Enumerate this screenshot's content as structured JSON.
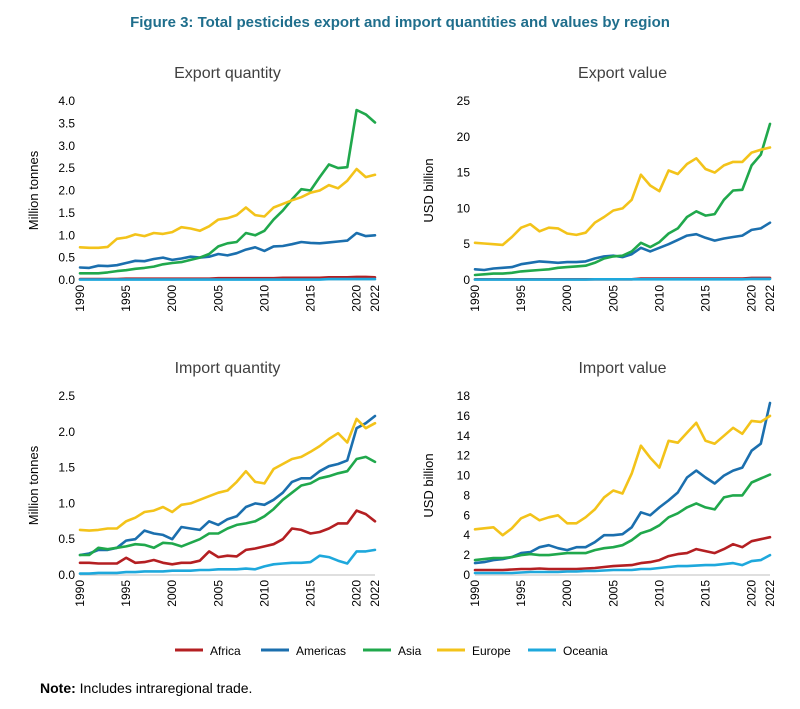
{
  "figure_title": "Figure 3: Total pesticides export and import quantities and values by region",
  "note": {
    "label": "Note:",
    "text": " Includes intraregional trade."
  },
  "colors": {
    "Africa": "#b41f22",
    "Americas": "#1b6fae",
    "Asia": "#20a84c",
    "Europe": "#f3c31a",
    "Oceania": "#1ea8dc"
  },
  "chart_data": [
    {
      "type": "line",
      "title": "Export quantity",
      "xlabel": "",
      "ylabel": "Million tonnes",
      "ylim": [
        0,
        4
      ],
      "yticks": [
        "0.0",
        "0.5",
        "1.0",
        "1.5",
        "2.0",
        "2.5",
        "3.0",
        "3.5",
        "4.0"
      ],
      "x": [
        1990,
        1991,
        1992,
        1993,
        1994,
        1995,
        1996,
        1997,
        1998,
        1999,
        2000,
        2001,
        2002,
        2003,
        2004,
        2005,
        2006,
        2007,
        2008,
        2009,
        2010,
        2011,
        2012,
        2013,
        2014,
        2015,
        2016,
        2017,
        2018,
        2019,
        2020,
        2021,
        2022
      ],
      "xticks": [
        "1990",
        "1995",
        "2000",
        "2005",
        "2010",
        "2015",
        "2020",
        "2022"
      ],
      "series": [
        {
          "name": "Africa",
          "values": [
            0.02,
            0.02,
            0.02,
            0.02,
            0.02,
            0.03,
            0.03,
            0.03,
            0.03,
            0.03,
            0.03,
            0.03,
            0.03,
            0.03,
            0.03,
            0.04,
            0.04,
            0.04,
            0.04,
            0.04,
            0.04,
            0.04,
            0.05,
            0.05,
            0.05,
            0.05,
            0.05,
            0.06,
            0.06,
            0.06,
            0.07,
            0.07,
            0.06
          ]
        },
        {
          "name": "Americas",
          "values": [
            0.28,
            0.27,
            0.32,
            0.31,
            0.33,
            0.38,
            0.43,
            0.42,
            0.47,
            0.5,
            0.45,
            0.48,
            0.52,
            0.5,
            0.52,
            0.58,
            0.55,
            0.6,
            0.68,
            0.73,
            0.65,
            0.75,
            0.76,
            0.8,
            0.85,
            0.83,
            0.82,
            0.84,
            0.86,
            0.88,
            1.05,
            0.98,
            1.0
          ]
        },
        {
          "name": "Asia",
          "values": [
            0.15,
            0.15,
            0.15,
            0.17,
            0.2,
            0.22,
            0.25,
            0.27,
            0.3,
            0.35,
            0.38,
            0.4,
            0.45,
            0.5,
            0.58,
            0.75,
            0.82,
            0.85,
            1.05,
            1.0,
            1.1,
            1.35,
            1.55,
            1.8,
            2.03,
            2.0,
            2.3,
            2.58,
            2.5,
            2.52,
            3.8,
            3.7,
            3.52
          ]
        },
        {
          "name": "Europe",
          "values": [
            0.73,
            0.72,
            0.72,
            0.74,
            0.92,
            0.95,
            1.02,
            0.98,
            1.05,
            1.03,
            1.07,
            1.18,
            1.15,
            1.1,
            1.2,
            1.35,
            1.38,
            1.45,
            1.62,
            1.45,
            1.42,
            1.62,
            1.7,
            1.78,
            1.85,
            1.95,
            2.0,
            2.12,
            2.05,
            2.22,
            2.48,
            2.3,
            2.35
          ]
        },
        {
          "name": "Oceania",
          "values": [
            0.01,
            0.01,
            0.01,
            0.01,
            0.01,
            0.01,
            0.01,
            0.01,
            0.01,
            0.01,
            0.01,
            0.01,
            0.01,
            0.01,
            0.01,
            0.01,
            0.01,
            0.01,
            0.01,
            0.01,
            0.01,
            0.01,
            0.01,
            0.01,
            0.01,
            0.01,
            0.01,
            0.02,
            0.02,
            0.02,
            0.02,
            0.02,
            0.02
          ]
        }
      ]
    },
    {
      "type": "line",
      "title": "Export value",
      "xlabel": "",
      "ylabel": "USD billion",
      "ylim": [
        0,
        25
      ],
      "yticks": [
        "0",
        "5",
        "10",
        "15",
        "20",
        "25"
      ],
      "x": [
        1990,
        1991,
        1992,
        1993,
        1994,
        1995,
        1996,
        1997,
        1998,
        1999,
        2000,
        2001,
        2002,
        2003,
        2004,
        2005,
        2006,
        2007,
        2008,
        2009,
        2010,
        2011,
        2012,
        2013,
        2014,
        2015,
        2016,
        2017,
        2018,
        2019,
        2020,
        2021,
        2022
      ],
      "xticks": [
        "1990",
        "1995",
        "2000",
        "2005",
        "2010",
        "2015",
        "2020",
        "2022"
      ],
      "series": [
        {
          "name": "Africa",
          "values": [
            0.1,
            0.1,
            0.1,
            0.1,
            0.1,
            0.1,
            0.1,
            0.1,
            0.1,
            0.1,
            0.1,
            0.1,
            0.1,
            0.1,
            0.1,
            0.1,
            0.1,
            0.1,
            0.2,
            0.2,
            0.2,
            0.2,
            0.2,
            0.2,
            0.2,
            0.2,
            0.2,
            0.2,
            0.2,
            0.2,
            0.3,
            0.3,
            0.3
          ]
        },
        {
          "name": "Americas",
          "values": [
            1.5,
            1.4,
            1.6,
            1.7,
            1.8,
            2.2,
            2.4,
            2.6,
            2.5,
            2.4,
            2.5,
            2.5,
            2.6,
            3.0,
            3.3,
            3.4,
            3.2,
            3.6,
            4.5,
            4.0,
            4.5,
            5.0,
            5.6,
            6.2,
            6.4,
            5.9,
            5.5,
            5.8,
            6.0,
            6.2,
            7.0,
            7.2,
            8.0
          ]
        },
        {
          "name": "Asia",
          "values": [
            0.7,
            0.8,
            0.9,
            0.9,
            1.0,
            1.2,
            1.3,
            1.4,
            1.5,
            1.7,
            1.8,
            1.9,
            2.0,
            2.4,
            3.0,
            3.3,
            3.4,
            4.0,
            5.2,
            4.6,
            5.3,
            6.5,
            7.2,
            8.8,
            9.6,
            9.0,
            9.2,
            11.2,
            12.5,
            12.6,
            16.0,
            17.5,
            21.8
          ]
        },
        {
          "name": "Europe",
          "values": [
            5.2,
            5.1,
            5.0,
            4.9,
            6.0,
            7.3,
            7.8,
            6.8,
            7.3,
            7.2,
            6.5,
            6.3,
            6.6,
            8.0,
            8.8,
            9.7,
            10.0,
            11.2,
            14.7,
            13.2,
            12.4,
            15.3,
            14.8,
            16.2,
            17.0,
            15.5,
            15.0,
            16.0,
            16.5,
            16.5,
            17.8,
            18.2,
            18.5
          ]
        },
        {
          "name": "Oceania",
          "values": [
            0.05,
            0.05,
            0.05,
            0.05,
            0.05,
            0.05,
            0.05,
            0.05,
            0.05,
            0.05,
            0.05,
            0.05,
            0.05,
            0.1,
            0.1,
            0.1,
            0.1,
            0.1,
            0.1,
            0.1,
            0.1,
            0.1,
            0.1,
            0.1,
            0.1,
            0.1,
            0.1,
            0.1,
            0.1,
            0.1,
            0.15,
            0.15,
            0.15
          ]
        }
      ]
    },
    {
      "type": "line",
      "title": "Import quantity",
      "xlabel": "",
      "ylabel": "Million tonnes",
      "ylim": [
        0,
        2.5
      ],
      "yticks": [
        "0.0",
        "0.5",
        "1.0",
        "1.5",
        "2.0",
        "2.5"
      ],
      "x": [
        1990,
        1991,
        1992,
        1993,
        1994,
        1995,
        1996,
        1997,
        1998,
        1999,
        2000,
        2001,
        2002,
        2003,
        2004,
        2005,
        2006,
        2007,
        2008,
        2009,
        2010,
        2011,
        2012,
        2013,
        2014,
        2015,
        2016,
        2017,
        2018,
        2019,
        2020,
        2021,
        2022
      ],
      "xticks": [
        "1990",
        "1995",
        "2000",
        "2005",
        "2010",
        "2015",
        "2020",
        "2022"
      ],
      "series": [
        {
          "name": "Africa",
          "values": [
            0.17,
            0.17,
            0.16,
            0.16,
            0.16,
            0.24,
            0.17,
            0.18,
            0.21,
            0.17,
            0.15,
            0.17,
            0.17,
            0.2,
            0.33,
            0.25,
            0.27,
            0.26,
            0.35,
            0.37,
            0.4,
            0.43,
            0.5,
            0.65,
            0.63,
            0.58,
            0.6,
            0.65,
            0.72,
            0.72,
            0.9,
            0.85,
            0.75
          ]
        },
        {
          "name": "Americas",
          "values": [
            0.28,
            0.3,
            0.35,
            0.35,
            0.38,
            0.48,
            0.5,
            0.62,
            0.58,
            0.56,
            0.5,
            0.67,
            0.65,
            0.63,
            0.75,
            0.7,
            0.78,
            0.82,
            0.95,
            1.0,
            0.98,
            1.05,
            1.15,
            1.3,
            1.35,
            1.35,
            1.45,
            1.52,
            1.55,
            1.6,
            2.05,
            2.12,
            2.22
          ]
        },
        {
          "name": "Asia",
          "values": [
            0.28,
            0.28,
            0.38,
            0.36,
            0.38,
            0.4,
            0.43,
            0.42,
            0.38,
            0.45,
            0.44,
            0.4,
            0.45,
            0.5,
            0.58,
            0.58,
            0.65,
            0.7,
            0.72,
            0.75,
            0.82,
            0.92,
            1.05,
            1.15,
            1.25,
            1.28,
            1.35,
            1.38,
            1.42,
            1.45,
            1.62,
            1.65,
            1.58
          ]
        },
        {
          "name": "Europe",
          "values": [
            0.63,
            0.62,
            0.63,
            0.65,
            0.65,
            0.75,
            0.8,
            0.88,
            0.9,
            0.95,
            0.88,
            0.98,
            1.0,
            1.05,
            1.1,
            1.15,
            1.18,
            1.3,
            1.45,
            1.3,
            1.28,
            1.48,
            1.55,
            1.62,
            1.65,
            1.72,
            1.8,
            1.9,
            1.98,
            1.85,
            2.18,
            2.05,
            2.12
          ]
        },
        {
          "name": "Oceania",
          "values": [
            0.02,
            0.02,
            0.03,
            0.03,
            0.03,
            0.04,
            0.04,
            0.05,
            0.05,
            0.05,
            0.06,
            0.06,
            0.06,
            0.07,
            0.07,
            0.08,
            0.08,
            0.08,
            0.09,
            0.08,
            0.12,
            0.15,
            0.16,
            0.17,
            0.17,
            0.18,
            0.27,
            0.25,
            0.2,
            0.16,
            0.33,
            0.33,
            0.35
          ]
        }
      ]
    },
    {
      "type": "line",
      "title": "Import value",
      "xlabel": "",
      "ylabel": "USD billion",
      "ylim": [
        0,
        18
      ],
      "yticks": [
        "0",
        "2",
        "4",
        "6",
        "8",
        "10",
        "12",
        "14",
        "16",
        "18"
      ],
      "x": [
        1990,
        1991,
        1992,
        1993,
        1994,
        1995,
        1996,
        1997,
        1998,
        1999,
        2000,
        2001,
        2002,
        2003,
        2004,
        2005,
        2006,
        2007,
        2008,
        2009,
        2010,
        2011,
        2012,
        2013,
        2014,
        2015,
        2016,
        2017,
        2018,
        2019,
        2020,
        2021,
        2022
      ],
      "xticks": [
        "1990",
        "1995",
        "2000",
        "2005",
        "2010",
        "2015",
        "2020",
        "2022"
      ],
      "series": [
        {
          "name": "Africa",
          "values": [
            0.5,
            0.5,
            0.5,
            0.5,
            0.55,
            0.6,
            0.6,
            0.65,
            0.6,
            0.6,
            0.6,
            0.6,
            0.65,
            0.7,
            0.8,
            0.9,
            0.95,
            1.0,
            1.2,
            1.3,
            1.5,
            1.9,
            2.1,
            2.2,
            2.6,
            2.4,
            2.2,
            2.6,
            3.1,
            2.8,
            3.4,
            3.6,
            3.8
          ]
        },
        {
          "name": "Americas",
          "values": [
            1.2,
            1.3,
            1.5,
            1.6,
            1.8,
            2.2,
            2.3,
            2.8,
            3.0,
            2.7,
            2.5,
            2.8,
            2.8,
            3.3,
            4.0,
            4.0,
            4.1,
            4.8,
            6.3,
            6.0,
            6.8,
            7.5,
            8.3,
            9.8,
            10.5,
            9.8,
            9.2,
            10.0,
            10.5,
            10.8,
            12.5,
            13.2,
            17.3
          ]
        },
        {
          "name": "Asia",
          "values": [
            1.5,
            1.6,
            1.7,
            1.7,
            1.8,
            2.0,
            2.1,
            2.0,
            2.0,
            2.1,
            2.2,
            2.2,
            2.2,
            2.5,
            2.7,
            2.8,
            3.0,
            3.5,
            4.2,
            4.5,
            5.0,
            5.8,
            6.2,
            6.8,
            7.2,
            6.8,
            6.6,
            7.8,
            8.0,
            8.0,
            9.3,
            9.7,
            10.1
          ]
        },
        {
          "name": "Europe",
          "values": [
            4.6,
            4.7,
            4.8,
            4.0,
            4.7,
            5.7,
            6.1,
            5.5,
            5.8,
            6.0,
            5.2,
            5.2,
            5.8,
            6.6,
            7.8,
            8.5,
            8.2,
            10.2,
            13.0,
            11.8,
            10.8,
            13.5,
            13.3,
            14.3,
            15.3,
            13.5,
            13.2,
            14.0,
            14.8,
            14.2,
            15.5,
            15.4,
            16.0
          ]
        },
        {
          "name": "Oceania",
          "values": [
            0.2,
            0.2,
            0.2,
            0.2,
            0.2,
            0.25,
            0.3,
            0.3,
            0.3,
            0.3,
            0.35,
            0.35,
            0.4,
            0.4,
            0.45,
            0.5,
            0.5,
            0.5,
            0.6,
            0.6,
            0.7,
            0.8,
            0.9,
            0.9,
            0.95,
            1.0,
            1.0,
            1.1,
            1.2,
            1.0,
            1.4,
            1.5,
            2.0
          ]
        }
      ]
    }
  ],
  "legend": [
    "Africa",
    "Americas",
    "Asia",
    "Europe",
    "Oceania"
  ]
}
